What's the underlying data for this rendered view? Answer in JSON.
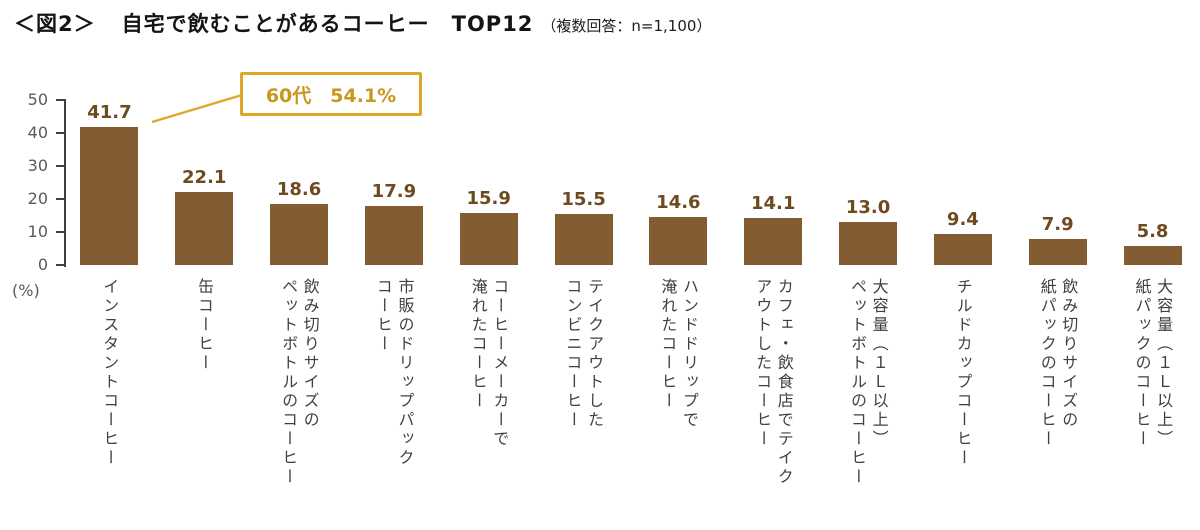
{
  "title": {
    "tag": "＜図2＞",
    "main": "自宅で飲むことがあるコーヒー　TOP12",
    "note": "（複数回答：n=1,100）"
  },
  "chart_data": {
    "type": "bar",
    "title": "自宅で飲むことがあるコーヒー TOP12",
    "subtitle": "複数回答：n=1,100",
    "categories": [
      "インスタントコーヒー",
      "缶コーヒー",
      "飲み切りサイズの\nペットボトルのコーヒー",
      "市販のドリップパック\nコーヒー",
      "コーヒーメーカーで\n淹れたコーヒー",
      "テイクアウトした\nコンビニコーヒー",
      "ハンドドリップで\n淹れたコーヒー",
      "カフェ・飲食店でテイク\nアウトしたコーヒー",
      "大容量（１Ｌ以上）\nペットボトルのコーヒー",
      "チルドカップコーヒー",
      "飲み切りサイズの\n紙パックのコーヒー",
      "大容量（１Ｌ以上）\n紙パックのコーヒー"
    ],
    "values": [
      41.7,
      22.1,
      18.6,
      17.9,
      15.9,
      15.5,
      14.6,
      14.1,
      13.0,
      9.4,
      7.9,
      5.8
    ],
    "ylabel": "(%)",
    "ylim": [
      0,
      50
    ],
    "yticks": [
      0,
      10,
      20,
      30,
      40,
      50
    ],
    "grid": false,
    "legend": null,
    "annotation": {
      "text": "60代　54.1%",
      "target_category": "インスタントコーヒー"
    },
    "colors": {
      "bar": "#845C31",
      "value_label": "#6E4A1F",
      "axis": "#3F3F3F",
      "tick_label": "#595959",
      "category_label": "#404040",
      "callout_border": "#DFA62A",
      "callout_text": "#C9961E"
    }
  }
}
